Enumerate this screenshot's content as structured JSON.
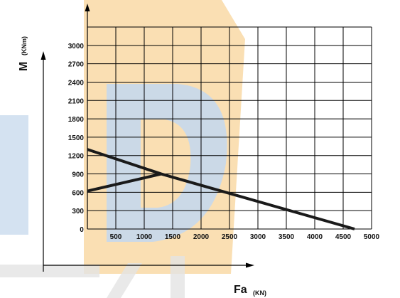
{
  "chart_data": {
    "type": "line",
    "xlabel": "Fa",
    "xunit": "(KN)",
    "ylabel": "M",
    "yunit": "(KNm)",
    "x_ticks": [
      "500",
      "1000",
      "1500",
      "2000",
      "2500",
      "3000",
      "3500",
      "4000",
      "4500",
      "5000"
    ],
    "y_ticks": [
      "300",
      "600",
      "900",
      "1200",
      "1500",
      "1800",
      "2100",
      "2400",
      "2700",
      "3000"
    ],
    "origin_label": "0",
    "xlim": [
      0,
      5000
    ],
    "ylim": [
      0,
      3300
    ],
    "grid": true,
    "series": [
      {
        "x": [
          0,
          1300,
          4700
        ],
        "y": [
          1300,
          900,
          0
        ],
        "color": "#1a1a1a"
      },
      {
        "x": [
          0,
          1300
        ],
        "y": [
          620,
          900
        ],
        "color": "#1a1a1a"
      }
    ]
  },
  "watermark": {
    "colors": {
      "yellow": "#f7c97a",
      "blue": "#b9cfe6",
      "gray": "#d9d9d9"
    }
  }
}
